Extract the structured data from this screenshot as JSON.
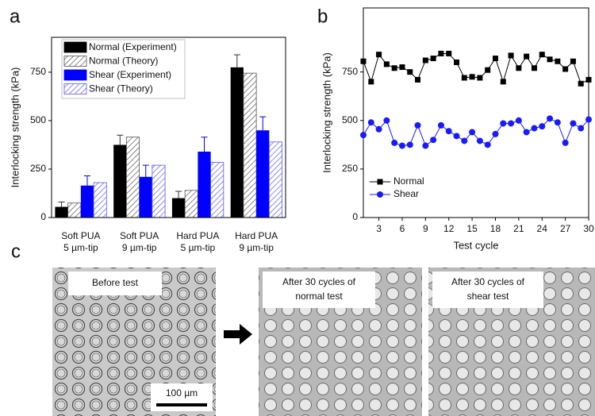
{
  "panel_labels": [
    "a",
    "b",
    "c"
  ],
  "chart_data": [
    {
      "type": "bar",
      "ylabel": "Interlocking strength (kPa)",
      "categories": [
        [
          "Soft PUA",
          "5 µm-tip"
        ],
        [
          "Soft PUA",
          "9 µm-tip"
        ],
        [
          "Hard PUA",
          "5 µm-tip"
        ],
        [
          "Hard PUA",
          "9 µm-tip"
        ]
      ],
      "series": [
        {
          "name": "Normal (Experiment)",
          "color": "#000000",
          "hatch": false,
          "values": [
            55,
            375,
            100,
            775
          ],
          "errors": [
            25,
            50,
            35,
            65
          ]
        },
        {
          "name": "Normal (Theory)",
          "color": "#555555",
          "hatch": true,
          "values": [
            75,
            415,
            140,
            745
          ]
        },
        {
          "name": "Shear (Experiment)",
          "color": "#0000ff",
          "hatch": false,
          "values": [
            165,
            210,
            340,
            450
          ],
          "errors": [
            50,
            60,
            75,
            70
          ]
        },
        {
          "name": "Shear (Theory)",
          "color": "#5a5aff",
          "hatch": true,
          "values": [
            180,
            270,
            285,
            390
          ]
        }
      ],
      "ylim": [
        0,
        930
      ],
      "yticks": [
        0,
        250,
        500,
        750
      ],
      "legend": "upper-left"
    },
    {
      "type": "line",
      "xlabel": "Test cycle",
      "ylabel": "Interlocking strength (kPa)",
      "x": [
        1,
        2,
        3,
        4,
        5,
        6,
        7,
        8,
        9,
        10,
        11,
        12,
        13,
        14,
        15,
        16,
        17,
        18,
        19,
        20,
        21,
        22,
        23,
        24,
        25,
        26,
        27,
        28,
        29,
        30
      ],
      "series": [
        {
          "name": "Normal",
          "color": "#000000",
          "marker": "square",
          "values": [
            805,
            700,
            840,
            790,
            770,
            775,
            750,
            710,
            810,
            820,
            845,
            845,
            800,
            720,
            725,
            720,
            760,
            820,
            700,
            835,
            770,
            830,
            770,
            840,
            815,
            805,
            765,
            805,
            690,
            710
          ]
        },
        {
          "name": "Shear",
          "color": "#1a1aff",
          "marker": "circle",
          "values": [
            425,
            490,
            455,
            500,
            385,
            370,
            375,
            475,
            370,
            400,
            475,
            445,
            420,
            395,
            440,
            395,
            375,
            430,
            485,
            485,
            500,
            440,
            460,
            470,
            510,
            490,
            385,
            485,
            460,
            505
          ]
        }
      ],
      "xlim": [
        1,
        30
      ],
      "xticks": [
        3,
        6,
        9,
        12,
        15,
        18,
        21,
        24,
        27,
        30
      ],
      "ylim": [
        0,
        1080
      ],
      "yticks": [
        0,
        250,
        500,
        750
      ],
      "legend": "lower-left"
    }
  ],
  "micrographs": {
    "before": "Before test",
    "after_normal": [
      "After 30 cycles of",
      "normal test"
    ],
    "after_shear": [
      "After 30 cycles of",
      "shear test"
    ],
    "scale_bar": "100 µm"
  }
}
